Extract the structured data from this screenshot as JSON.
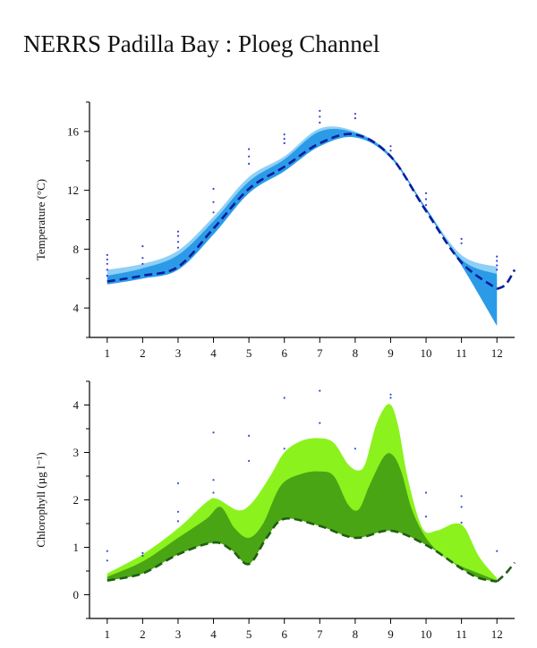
{
  "title": "NERRS Padilla Bay : Ploeg Channel",
  "colors": {
    "temp_band_outer": "#8fd0f5",
    "temp_band_inner": "#2b9be8",
    "temp_line": "#0a1d9c",
    "temp_dots": "#3a3fcf",
    "chl_band_outer": "#8bf21e",
    "chl_band_inner": "#4aa514",
    "chl_line": "#1f5f12",
    "chl_dots": "#2a55cc"
  },
  "chart_data": [
    {
      "type": "area",
      "ylabel": "Temperature (°C)",
      "x": [
        1,
        2,
        3,
        4,
        5,
        6,
        7,
        8,
        9,
        10,
        11,
        12
      ],
      "xticks": [
        "1",
        "2",
        "3",
        "4",
        "5",
        "6",
        "7",
        "8",
        "9",
        "10",
        "11",
        "12"
      ],
      "yticks": [
        "4",
        "8",
        "12",
        "16"
      ],
      "ylim": [
        2,
        18
      ],
      "xlim": [
        0.5,
        12.5
      ],
      "series": [
        {
          "role": "band_outer",
          "upper": [
            6.6,
            7.0,
            7.9,
            10.2,
            12.9,
            14.3,
            16.2,
            16.0,
            14.4,
            10.8,
            7.6,
            6.8
          ],
          "lower": [
            5.6,
            6.0,
            6.6,
            9.0,
            11.8,
            13.3,
            15.0,
            15.6,
            14.2,
            10.6,
            6.9,
            2.8
          ]
        },
        {
          "role": "band_inner",
          "upper": [
            6.2,
            6.7,
            7.6,
            9.9,
            12.6,
            14.1,
            16.0,
            15.9,
            14.4,
            10.8,
            7.3,
            6.3
          ],
          "lower": [
            5.6,
            6.0,
            6.6,
            9.0,
            11.8,
            13.3,
            15.0,
            15.6,
            14.2,
            10.6,
            6.9,
            2.8
          ]
        },
        {
          "role": "mean_line",
          "values": [
            5.8,
            6.2,
            6.8,
            9.4,
            12.1,
            13.6,
            15.2,
            15.8,
            14.3,
            10.6,
            7.1,
            5.3
          ],
          "extension": [
            [
              12.0,
              5.3
            ],
            [
              12.25,
              5.6
            ],
            [
              12.5,
              6.6
            ]
          ]
        },
        {
          "role": "observations",
          "points": [
            [
              1,
              6.2
            ],
            [
              1,
              6.6
            ],
            [
              1,
              7.0
            ],
            [
              1,
              7.3
            ],
            [
              1,
              7.6
            ],
            [
              2,
              7.0
            ],
            [
              2,
              7.4
            ],
            [
              2,
              8.2
            ],
            [
              3,
              8.1
            ],
            [
              3,
              8.5
            ],
            [
              3,
              8.9
            ],
            [
              3,
              9.2
            ],
            [
              4,
              10.5
            ],
            [
              4,
              11.2
            ],
            [
              4,
              12.1
            ],
            [
              5,
              13.8
            ],
            [
              5,
              14.3
            ],
            [
              5,
              14.8
            ],
            [
              6,
              15.2
            ],
            [
              6,
              15.5
            ],
            [
              6,
              15.8
            ],
            [
              7,
              16.6
            ],
            [
              7,
              17.0
            ],
            [
              7,
              17.4
            ],
            [
              8,
              16.9
            ],
            [
              8,
              17.2
            ],
            [
              9,
              14.7
            ],
            [
              9,
              15.0
            ],
            [
              10,
              11.0
            ],
            [
              10,
              11.4
            ],
            [
              10,
              11.8
            ],
            [
              11,
              8.4
            ],
            [
              11,
              8.7
            ],
            [
              12,
              6.6
            ],
            [
              12,
              6.9
            ],
            [
              12,
              7.2
            ],
            [
              12,
              7.5
            ]
          ]
        }
      ]
    },
    {
      "type": "area",
      "ylabel": "Chlorophyll (µg l⁻¹)",
      "x": [
        1,
        2,
        3,
        4,
        5,
        6,
        7,
        8,
        9,
        10,
        11,
        12
      ],
      "xticks": [
        "1",
        "2",
        "3",
        "4",
        "5",
        "6",
        "7",
        "8",
        "9",
        "10",
        "11",
        "12"
      ],
      "yticks": [
        "0",
        "1",
        "2",
        "3",
        "4"
      ],
      "ylim": [
        -0.5,
        4.5
      ],
      "xlim": [
        0.5,
        12.5
      ],
      "series": [
        {
          "role": "band_outer",
          "upper_curve": [
            [
              1,
              0.45
            ],
            [
              2,
              0.85
            ],
            [
              3,
              1.4
            ],
            [
              3.8,
              1.95
            ],
            [
              4.1,
              2.02
            ],
            [
              4.7,
              1.78
            ],
            [
              5.1,
              1.95
            ],
            [
              5.6,
              2.5
            ],
            [
              6,
              3.0
            ],
            [
              6.5,
              3.25
            ],
            [
              7,
              3.3
            ],
            [
              7.4,
              3.2
            ],
            [
              7.8,
              2.75
            ],
            [
              8.1,
              2.62
            ],
            [
              8.3,
              2.8
            ],
            [
              8.6,
              3.6
            ],
            [
              8.95,
              4.02
            ],
            [
              9.2,
              3.6
            ],
            [
              9.5,
              2.4
            ],
            [
              9.9,
              1.4
            ],
            [
              10.3,
              1.35
            ],
            [
              10.8,
              1.5
            ],
            [
              11.1,
              1.4
            ],
            [
              11.5,
              0.8
            ],
            [
              12,
              0.35
            ]
          ],
          "lower_curve": [
            [
              1,
              0.3
            ],
            [
              2,
              0.45
            ],
            [
              3,
              0.85
            ],
            [
              4,
              1.1
            ],
            [
              4.5,
              0.95
            ],
            [
              5,
              0.65
            ],
            [
              5.5,
              1.2
            ],
            [
              6,
              1.6
            ],
            [
              7,
              1.45
            ],
            [
              8,
              1.2
            ],
            [
              9,
              1.35
            ],
            [
              10,
              1.05
            ],
            [
              11,
              0.55
            ],
            [
              11.5,
              0.35
            ],
            [
              12,
              0.28
            ]
          ]
        },
        {
          "role": "band_inner",
          "upper_curve": [
            [
              1,
              0.38
            ],
            [
              2,
              0.7
            ],
            [
              3,
              1.2
            ],
            [
              3.8,
              1.6
            ],
            [
              4.2,
              1.85
            ],
            [
              4.6,
              1.4
            ],
            [
              5,
              1.2
            ],
            [
              5.4,
              1.5
            ],
            [
              5.9,
              2.3
            ],
            [
              6.5,
              2.55
            ],
            [
              7,
              2.6
            ],
            [
              7.4,
              2.5
            ],
            [
              7.8,
              1.9
            ],
            [
              8.1,
              1.8
            ],
            [
              8.4,
              2.3
            ],
            [
              8.8,
              2.9
            ],
            [
              9.05,
              2.95
            ],
            [
              9.3,
              2.6
            ],
            [
              9.6,
              1.8
            ],
            [
              10,
              1.2
            ],
            [
              10.5,
              0.8
            ],
            [
              11,
              0.6
            ],
            [
              11.5,
              0.45
            ],
            [
              12,
              0.3
            ]
          ],
          "lower_curve": [
            [
              1,
              0.3
            ],
            [
              2,
              0.45
            ],
            [
              3,
              0.85
            ],
            [
              4,
              1.1
            ],
            [
              4.5,
              0.95
            ],
            [
              5,
              0.65
            ],
            [
              5.5,
              1.2
            ],
            [
              6,
              1.6
            ],
            [
              7,
              1.45
            ],
            [
              8,
              1.2
            ],
            [
              9,
              1.35
            ],
            [
              10,
              1.05
            ],
            [
              11,
              0.55
            ],
            [
              11.5,
              0.35
            ],
            [
              12,
              0.28
            ]
          ]
        },
        {
          "role": "mean_line",
          "curve": [
            [
              1,
              0.3
            ],
            [
              2,
              0.45
            ],
            [
              3,
              0.85
            ],
            [
              4,
              1.1
            ],
            [
              4.5,
              0.95
            ],
            [
              5,
              0.65
            ],
            [
              5.5,
              1.2
            ],
            [
              6,
              1.6
            ],
            [
              7,
              1.45
            ],
            [
              8,
              1.2
            ],
            [
              9,
              1.35
            ],
            [
              10,
              1.05
            ],
            [
              11,
              0.55
            ],
            [
              11.5,
              0.35
            ],
            [
              12,
              0.28
            ]
          ],
          "extension": [
            [
              12.0,
              0.28
            ],
            [
              12.25,
              0.45
            ],
            [
              12.5,
              0.68
            ]
          ]
        },
        {
          "role": "observations",
          "points": [
            [
              1,
              0.72
            ],
            [
              1,
              0.92
            ],
            [
              2,
              0.82
            ],
            [
              2,
              0.88
            ],
            [
              3,
              1.55
            ],
            [
              3,
              1.75
            ],
            [
              3,
              2.35
            ],
            [
              4,
              2.15
            ],
            [
              4,
              2.42
            ],
            [
              4,
              3.42
            ],
            [
              5,
              2.82
            ],
            [
              5,
              3.35
            ],
            [
              6,
              3.08
            ],
            [
              6,
              4.15
            ],
            [
              7,
              3.62
            ],
            [
              7,
              4.3
            ],
            [
              8,
              3.08
            ],
            [
              9,
              4.15
            ],
            [
              9,
              4.22
            ],
            [
              10,
              1.65
            ],
            [
              10,
              2.15
            ],
            [
              11,
              1.52
            ],
            [
              11,
              1.85
            ],
            [
              11,
              2.08
            ],
            [
              12,
              0.92
            ]
          ]
        }
      ]
    }
  ]
}
